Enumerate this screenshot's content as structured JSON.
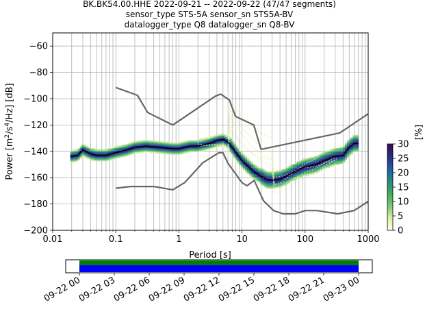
{
  "chart_data": [
    {
      "type": "heatmap",
      "title_lines": [
        "BK.BK54.00.HHE   2022-09-21 -- 2022-09-22  (47/47 segments)",
        "sensor_type STS-5A sensor_sn STS5A-BV",
        "datalogger_type Q8 datalogger_sn Q8-BV"
      ],
      "xlabel": "Period [s]",
      "ylabel_parts": [
        "Power [m",
        "2",
        "/s",
        "4",
        "/Hz] [dB]"
      ],
      "xscale": "log",
      "xlim": [
        0.01,
        1000
      ],
      "ylim": [
        -200,
        -50
      ],
      "xticks": [
        0.01,
        0.1,
        1,
        10,
        100,
        1000
      ],
      "xtick_labels": [
        "0.01",
        "0.1",
        "1",
        "10",
        "100",
        "1000"
      ],
      "yticks": [
        -200,
        -180,
        -160,
        -140,
        -120,
        -100,
        -80,
        -60
      ],
      "ytick_labels": [
        "−200",
        "−180",
        "−160",
        "−140",
        "−120",
        "−100",
        "−80",
        "−60"
      ],
      "grid": true,
      "colorbar": {
        "label": "[%]",
        "range": [
          0,
          30
        ],
        "ticks": [
          0,
          5,
          10,
          15,
          20,
          25,
          30
        ],
        "tick_labels": [
          "0",
          "5",
          "10",
          "15",
          "20",
          "25",
          "30"
        ],
        "colors": [
          "#ffffe5",
          "#d9f0a3",
          "#78c679",
          "#41ab5d",
          "#238b84",
          "#225ea8",
          "#2b2c7a",
          "#3d0a4f"
        ]
      },
      "series": [
        {
          "role": "mean",
          "color": "#000000",
          "x": [
            0.019,
            0.025,
            0.03,
            0.04,
            0.05,
            0.07,
            0.1,
            0.15,
            0.2,
            0.3,
            0.5,
            0.8,
            1,
            1.5,
            2,
            3,
            4,
            5,
            6,
            7,
            8,
            10,
            15,
            20,
            25,
            30,
            40,
            50,
            70,
            100,
            150,
            200,
            300,
            400,
            500,
            600,
            700
          ],
          "y": [
            -144,
            -143,
            -139,
            -142,
            -143,
            -143,
            -141,
            -139,
            -137,
            -136,
            -137,
            -138,
            -138,
            -136,
            -136,
            -134,
            -132,
            -131,
            -133,
            -137,
            -141,
            -147,
            -155,
            -159,
            -161.5,
            -162,
            -161,
            -159,
            -155,
            -152,
            -150,
            -147,
            -144,
            -143,
            -137,
            -134,
            -134
          ]
        },
        {
          "role": "noise-model-high",
          "color": "#666666",
          "x": [
            0.1,
            0.22,
            0.32,
            0.8,
            3.8,
            4.6,
            6.3,
            7.9,
            15.4,
            20,
            354.8,
            1000
          ],
          "y": [
            -91.5,
            -97.4,
            -110.5,
            -120,
            -98,
            -96.5,
            -101,
            -113.5,
            -120,
            -138.5,
            -126,
            -111.5
          ]
        },
        {
          "role": "noise-model-low",
          "color": "#666666",
          "x": [
            0.1,
            0.17,
            0.4,
            0.8,
            1.24,
            2.4,
            4.3,
            5,
            6,
            10,
            12,
            15.6,
            21.9,
            31.6,
            45,
            70,
            101,
            154,
            328,
            600,
            1000
          ],
          "y": [
            -168,
            -166.7,
            -166.7,
            -169.2,
            -163.7,
            -148.6,
            -141.1,
            -141.1,
            -149,
            -163.8,
            -166.2,
            -162.1,
            -177.5,
            -185,
            -187.5,
            -187.5,
            -185,
            -185,
            -187.5,
            -185,
            -178
          ]
        }
      ]
    },
    {
      "type": "timeline",
      "tick_labels": [
        "09-22 00",
        "09-22 03",
        "09-22 06",
        "09-22 09",
        "09-22 12",
        "09-22 15",
        "09-22 18",
        "09-22 21",
        "09-23 00"
      ],
      "bars": [
        {
          "role": "data-availability",
          "color": "#008000"
        },
        {
          "role": "psd-coverage",
          "color": "#0000ff"
        }
      ]
    }
  ]
}
